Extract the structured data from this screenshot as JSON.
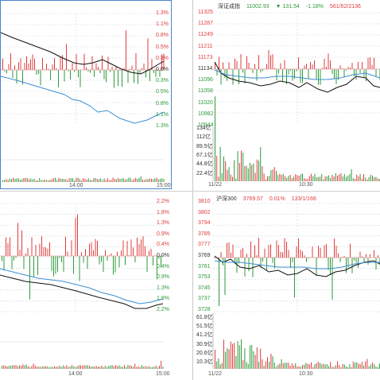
{
  "colors": {
    "up": "#e03c3c",
    "down": "#2e9a3a",
    "price_line": "#111111",
    "avg_line": "#3b8fd1",
    "grid": "#cfd6df",
    "frame": "#4a86c8"
  },
  "top_left": {
    "right_axis": [
      "1.3%",
      "1.1%",
      "0.8%",
      "0.5%",
      "0.3%",
      "0.0%",
      "0.3%",
      "0.5%",
      "0.8%",
      "1.1%",
      "1.3%"
    ],
    "time_labels": [
      "14:00",
      "15:00"
    ]
  },
  "top_right": {
    "header": {
      "name": "深证成指",
      "price": "11002.93",
      "change": "▼ 131.54",
      "pct": "-1.18%",
      "counts": "561/62/2136"
    },
    "left_axis": [
      "11325",
      "11287",
      "11249",
      "11211",
      "11173",
      "11134",
      "11096",
      "11058",
      "11020",
      "10982",
      "10944"
    ],
    "volume_axis": [
      "134亿",
      "112亿",
      "89.5亿",
      "67.1亿",
      "44.8亿",
      "22.4亿"
    ],
    "time_labels": [
      "11/22",
      "10:30"
    ]
  },
  "bottom_left": {
    "right_axis": [
      "2.2%",
      "1.8%",
      "1.3%",
      "0.9%",
      "0.4%",
      "0.0%",
      "0.4%",
      "0.9%",
      "1.3%",
      "1.8%",
      "2.2%"
    ],
    "time_labels": [
      "14:00",
      "15:00"
    ]
  },
  "bottom_right": {
    "header": {
      "name": "沪深300",
      "price": "3769.57",
      "pct": "0.01%",
      "counts": "133/1/166"
    },
    "left_axis": [
      "3810",
      "3802",
      "3794",
      "3785",
      "3777",
      "3769",
      "3761",
      "3753",
      "3745",
      "3737",
      "3728"
    ],
    "volume_axis": [
      "61.8亿",
      "51.5亿",
      "41.2亿",
      "30.9亿",
      "20.6亿",
      "10.3亿"
    ],
    "time_labels": [
      "11/22",
      "10:30"
    ]
  }
}
